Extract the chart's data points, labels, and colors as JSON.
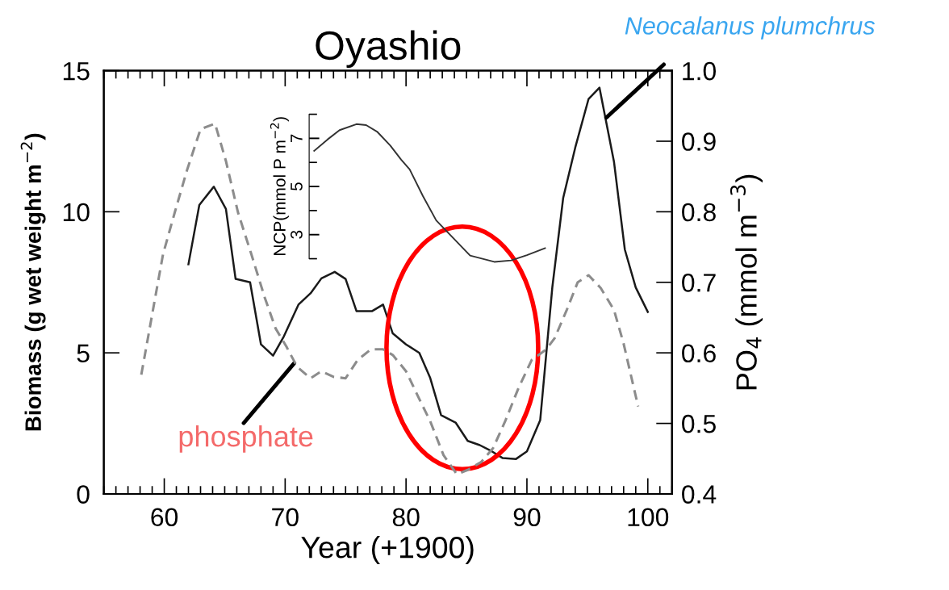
{
  "chart_data": {
    "type": "line",
    "title": "Oyashio",
    "xlabel": "Year (+1900)",
    "ylabel": "Biomass (g wet weight m$^{−2}$)",
    "y2label": "PO$_{4}$ (mmol m$^{−3}$)",
    "y3label": "NCP(mmol P m$^{−2}$)",
    "xlim": [
      55,
      102
    ],
    "xticks": [
      60,
      70,
      80,
      90,
      100
    ],
    "ylim": [
      0,
      15
    ],
    "yticks": [
      0,
      5,
      10,
      15
    ],
    "y2lim": [
      0.4,
      1.0
    ],
    "y2ticks": [
      {
        "value": 0.4,
        "label": "0.4"
      },
      {
        "value": 0.5,
        "label": "0.5"
      },
      {
        "value": 0.6,
        "label": "0.6"
      },
      {
        "value": 0.7,
        "label": "0.7"
      },
      {
        "value": 0.8,
        "label": "0.8"
      },
      {
        "value": 0.9,
        "label": "0.9"
      },
      {
        "value": 1.0,
        "label": "1.0"
      }
    ],
    "y3lim": [
      -7.77,
      9.81
    ],
    "y3ticks": [
      3,
      5,
      7
    ],
    "series": [
      {
        "color": "#1a1a1a",
        "line_style": "solid",
        "x": [
          62.0,
          62.9,
          64.1,
          65.1,
          65.9,
          67.1,
          68.0,
          69.0,
          69.9,
          71.1,
          72.1,
          73.0,
          74.1,
          75.0,
          75.9,
          77.2,
          78.1,
          78.9,
          80.0,
          81.1,
          82.0,
          82.9,
          84.1,
          85.1,
          86.1,
          87.1,
          88.0,
          89.1,
          90.0,
          91.1,
          92.1,
          93.0,
          94.0,
          95.1,
          96.0,
          97.2,
          98.1,
          99.0,
          100.0
        ],
        "values": [
          8.14,
          10.24,
          10.89,
          10.1,
          7.62,
          7.5,
          5.3,
          4.9,
          5.59,
          6.71,
          7.11,
          7.64,
          7.87,
          7.62,
          6.48,
          6.48,
          6.71,
          5.69,
          5.3,
          5.0,
          4.11,
          2.79,
          2.53,
          1.88,
          1.73,
          1.51,
          1.27,
          1.24,
          1.51,
          2.62,
          7.32,
          10.49,
          12.28,
          14.0,
          14.4,
          11.78,
          8.66,
          7.32,
          6.45
        ]
      },
      {
        "color": "#8c8c8c",
        "line_style": "dashed",
        "axis": "y2",
        "x": [
          58.1,
          58.9,
          59.9,
          60.9,
          61.9,
          63.0,
          64.2,
          65.1,
          66.1,
          67.2,
          68.3,
          69.2,
          70.1,
          71.0,
          72.1,
          73.0,
          74.0,
          75.0,
          76.0,
          77.1,
          78.1,
          78.9,
          80.0,
          81.0,
          82.0,
          83.1,
          84.2,
          85.1,
          86.2,
          87.2,
          88.2,
          89.3,
          90.4,
          91.6,
          92.3,
          93.3,
          94.2,
          95.1,
          96.1,
          97.2,
          98.0,
          99.2
        ],
        "values": [
          0.569,
          0.645,
          0.74,
          0.801,
          0.86,
          0.917,
          0.925,
          0.872,
          0.799,
          0.74,
          0.679,
          0.635,
          0.609,
          0.58,
          0.564,
          0.574,
          0.566,
          0.564,
          0.59,
          0.605,
          0.605,
          0.597,
          0.574,
          0.538,
          0.503,
          0.455,
          0.428,
          0.434,
          0.445,
          0.465,
          0.503,
          0.55,
          0.59,
          0.605,
          0.621,
          0.661,
          0.7,
          0.71,
          0.692,
          0.661,
          0.613,
          0.524
        ]
      },
      {
        "color": "#333333",
        "line_style": "solid",
        "axis": "y3",
        "x": [
          72.4,
          73.5,
          74.5,
          75.9,
          76.7,
          77.6,
          78.7,
          79.6,
          80.3,
          81.4,
          82.5,
          83.9,
          85.3,
          87.3,
          88.7,
          90.0,
          91.5
        ],
        "values": [
          6.48,
          6.95,
          7.34,
          7.59,
          7.55,
          7.28,
          6.7,
          6.11,
          5.71,
          4.6,
          3.59,
          2.86,
          2.13,
          1.87,
          1.93,
          2.15,
          2.44
        ]
      }
    ],
    "annotations": [
      {
        "text": "Neocalanus plumchrus",
        "x": 96.5,
        "y": 13.31
      },
      {
        "text": "phosphate",
        "x": 70.8,
        "y": 4.66
      }
    ]
  }
}
